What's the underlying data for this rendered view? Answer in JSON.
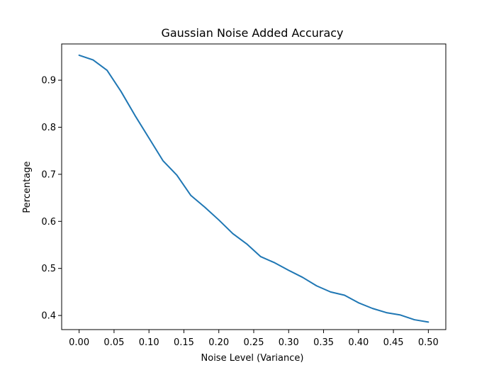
{
  "chart_data": {
    "type": "line",
    "title": "Gaussian Noise Added Accuracy",
    "xlabel": "Noise Level (Variance)",
    "ylabel": "Percentage",
    "xlim": [
      -0.025,
      0.525
    ],
    "ylim": [
      0.37,
      0.977
    ],
    "xticks": [
      0.0,
      0.05,
      0.1,
      0.15,
      0.2,
      0.25,
      0.3,
      0.35,
      0.4,
      0.45,
      0.5
    ],
    "xtick_labels": [
      "0.00",
      "0.05",
      "0.10",
      "0.15",
      "0.20",
      "0.25",
      "0.30",
      "0.35",
      "0.40",
      "0.45",
      "0.50"
    ],
    "yticks": [
      0.4,
      0.5,
      0.6,
      0.7,
      0.8,
      0.9
    ],
    "ytick_labels": [
      "0.4",
      "0.5",
      "0.6",
      "0.7",
      "0.8",
      "0.9"
    ],
    "grid": false,
    "series_color": "#1f77b4",
    "x": [
      0.0,
      0.02,
      0.04,
      0.06,
      0.08,
      0.1,
      0.12,
      0.14,
      0.16,
      0.18,
      0.2,
      0.22,
      0.24,
      0.26,
      0.28,
      0.3,
      0.32,
      0.34,
      0.36,
      0.38,
      0.4,
      0.42,
      0.44,
      0.46,
      0.48,
      0.5
    ],
    "y": [
      0.953,
      0.943,
      0.921,
      0.876,
      0.825,
      0.777,
      0.729,
      0.698,
      0.655,
      0.63,
      0.603,
      0.574,
      0.552,
      0.525,
      0.512,
      0.496,
      0.481,
      0.463,
      0.45,
      0.443,
      0.427,
      0.415,
      0.406,
      0.401,
      0.391,
      0.386
    ]
  }
}
